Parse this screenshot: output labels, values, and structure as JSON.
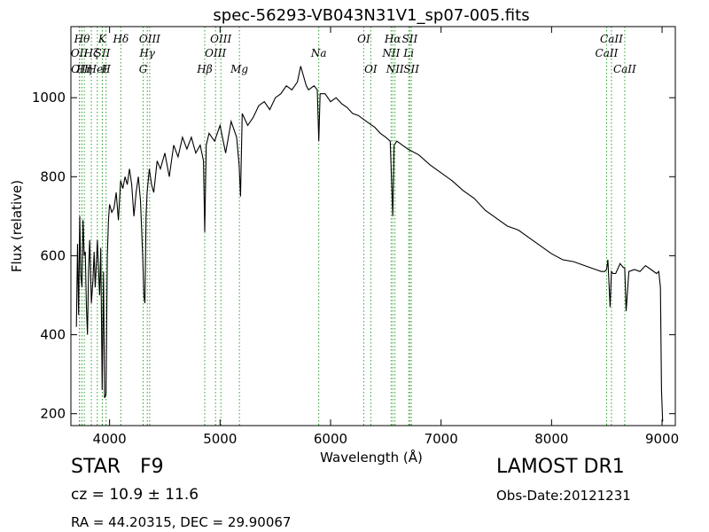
{
  "chart_data": {
    "type": "line",
    "title": "spec-56293-VB043N31V1_sp07-005.fits",
    "xlabel": "Wavelength (Å)",
    "ylabel": "Flux (relative)",
    "xlim": [
      3650,
      9120
    ],
    "ylim": [
      170,
      1180
    ],
    "xticks": [
      4000,
      5000,
      6000,
      7000,
      8000,
      9000
    ],
    "yticks": [
      200,
      400,
      600,
      800,
      1000
    ],
    "grid": false,
    "line_color": "#000000",
    "marker_color": "#2ca02c",
    "spectrum": {
      "name": "",
      "x": [
        3700,
        3710,
        3720,
        3730,
        3740,
        3750,
        3760,
        3770,
        3780,
        3790,
        3800,
        3810,
        3820,
        3835,
        3850,
        3860,
        3870,
        3880,
        3890,
        3900,
        3910,
        3920,
        3933,
        3945,
        3955,
        3968,
        3980,
        3990,
        4000,
        4020,
        4040,
        4060,
        4080,
        4100,
        4120,
        4140,
        4160,
        4180,
        4200,
        4220,
        4240,
        4260,
        4280,
        4300,
        4310,
        4320,
        4330,
        4340,
        4360,
        4380,
        4400,
        4430,
        4460,
        4500,
        4540,
        4580,
        4620,
        4660,
        4700,
        4740,
        4780,
        4820,
        4850,
        4861,
        4875,
        4900,
        4950,
        5000,
        5050,
        5100,
        5150,
        5172,
        5185,
        5200,
        5250,
        5300,
        5350,
        5400,
        5450,
        5500,
        5550,
        5600,
        5650,
        5700,
        5730,
        5750,
        5780,
        5800,
        5850,
        5880,
        5893,
        5905,
        5950,
        6000,
        6050,
        6100,
        6150,
        6200,
        6250,
        6300,
        6350,
        6400,
        6450,
        6500,
        6540,
        6563,
        6575,
        6600,
        6650,
        6700,
        6800,
        6900,
        7000,
        7100,
        7200,
        7300,
        7400,
        7500,
        7600,
        7700,
        7800,
        7900,
        8000,
        8100,
        8200,
        8300,
        8400,
        8450,
        8480,
        8498,
        8510,
        8530,
        8542,
        8555,
        8580,
        8620,
        8650,
        8662,
        8675,
        8700,
        8750,
        8800,
        8850,
        8900,
        8950,
        8970,
        8985,
        8995,
        9005
      ],
      "y": [
        420,
        630,
        450,
        700,
        550,
        520,
        690,
        600,
        610,
        470,
        400,
        560,
        640,
        480,
        540,
        610,
        520,
        580,
        640,
        560,
        500,
        620,
        260,
        560,
        240,
        250,
        600,
        690,
        730,
        710,
        720,
        760,
        690,
        790,
        770,
        800,
        780,
        820,
        780,
        700,
        760,
        800,
        740,
        600,
        500,
        480,
        700,
        760,
        820,
        780,
        760,
        840,
        820,
        860,
        800,
        880,
        850,
        900,
        870,
        900,
        860,
        880,
        840,
        660,
        880,
        910,
        890,
        930,
        860,
        940,
        900,
        830,
        750,
        960,
        930,
        950,
        980,
        990,
        970,
        1000,
        1010,
        1030,
        1020,
        1040,
        1080,
        1060,
        1030,
        1020,
        1030,
        1020,
        890,
        1010,
        1010,
        990,
        1000,
        985,
        975,
        960,
        955,
        945,
        935,
        925,
        910,
        900,
        890,
        700,
        880,
        890,
        880,
        870,
        855,
        830,
        810,
        790,
        765,
        745,
        715,
        695,
        675,
        665,
        645,
        625,
        605,
        590,
        585,
        575,
        565,
        560,
        560,
        565,
        590,
        470,
        560,
        555,
        555,
        580,
        570,
        570,
        460,
        560,
        565,
        560,
        575,
        565,
        555,
        560,
        520,
        260,
        180
      ]
    },
    "lines": [
      {
        "wl": 3727,
        "label": "OII",
        "row": 2
      },
      {
        "wl": 3729,
        "label": "OII",
        "row": 3
      },
      {
        "wl": 3750,
        "label": "Hθ",
        "row": 1
      },
      {
        "wl": 3771,
        "label": "Hη",
        "row": 3
      },
      {
        "wl": 3835,
        "label": "Hζ",
        "row": 2
      },
      {
        "wl": 3889,
        "label": "HeI",
        "row": 3
      },
      {
        "wl": 3934,
        "label": "K",
        "row": 1
      },
      {
        "wl": 3935,
        "label": "SII",
        "row": 2
      },
      {
        "wl": 3968,
        "label": "H",
        "row": 3
      },
      {
        "wl": 4102,
        "label": "Hδ",
        "row": 1
      },
      {
        "wl": 4304,
        "label": "G",
        "row": 3
      },
      {
        "wl": 4341,
        "label": "Hγ",
        "row": 2
      },
      {
        "wl": 4363,
        "label": "OIII",
        "row": 1
      },
      {
        "wl": 4861,
        "label": "Hβ",
        "row": 3
      },
      {
        "wl": 4959,
        "label": "OIII",
        "row": 2
      },
      {
        "wl": 5007,
        "label": "OIII",
        "row": 1
      },
      {
        "wl": 5175,
        "label": "Mg",
        "row": 3
      },
      {
        "wl": 5893,
        "label": "Na",
        "row": 2
      },
      {
        "wl": 6300,
        "label": "OI",
        "row": 1
      },
      {
        "wl": 6364,
        "label": "OI",
        "row": 3
      },
      {
        "wl": 6548,
        "label": "NII",
        "row": 2
      },
      {
        "wl": 6563,
        "label": "Hα",
        "row": 1
      },
      {
        "wl": 6583,
        "label": "NII",
        "row": 3
      },
      {
        "wl": 6707,
        "label": "Li",
        "row": 2
      },
      {
        "wl": 6717,
        "label": "SII",
        "row": 1
      },
      {
        "wl": 6731,
        "label": "SII",
        "row": 3
      },
      {
        "wl": 8498,
        "label": "CaII",
        "row": 2
      },
      {
        "wl": 8542,
        "label": "CaII",
        "row": 1
      },
      {
        "wl": 8662,
        "label": "CaII",
        "row": 3
      }
    ]
  },
  "info": {
    "object_class": "STAR",
    "subclass": "F9",
    "cz": "cz = 10.9  ± 11.6",
    "coords": "RA = 44.20315, DEC = 29.90067",
    "survey": "LAMOST DR1",
    "obs_date": "Obs-Date:20121231"
  }
}
